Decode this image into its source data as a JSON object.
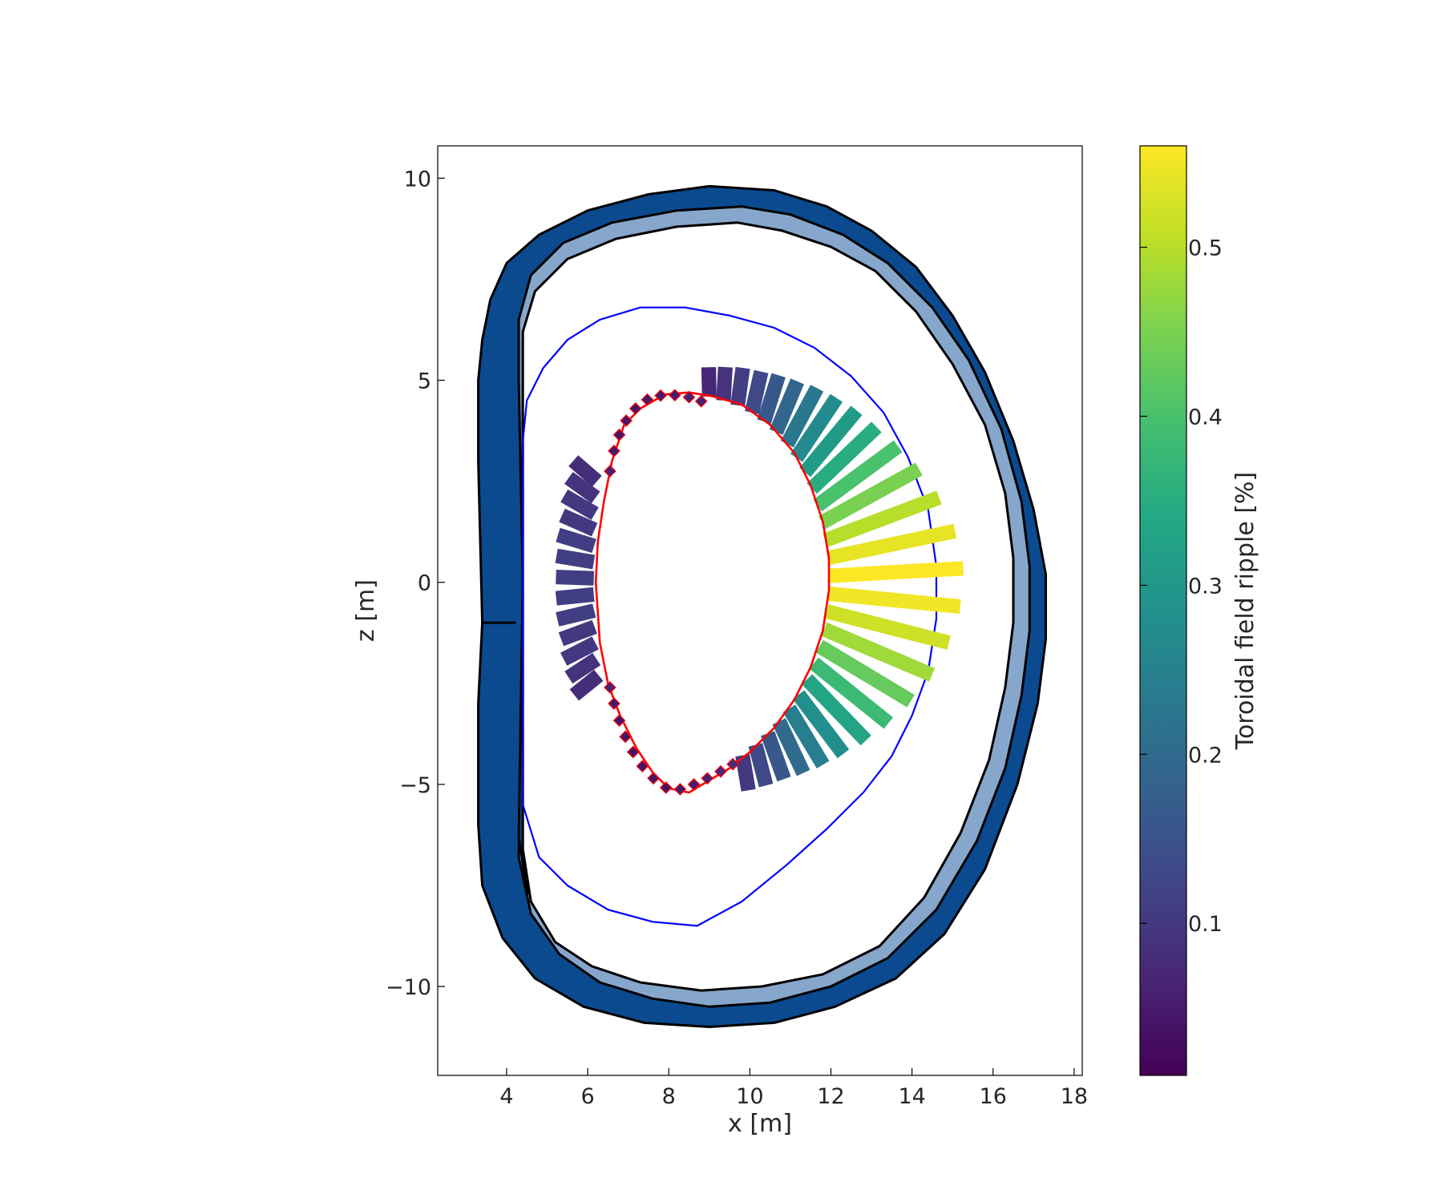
{
  "chart_data": {
    "type": "scatter",
    "xlabel": "x [m]",
    "ylabel": "z [m]",
    "xlim": [
      2.3,
      18.2
    ],
    "ylim": [
      -12.2,
      10.8
    ],
    "xticks": [
      4,
      6,
      8,
      10,
      12,
      14,
      16,
      18
    ],
    "yticks": [
      -10,
      -5,
      0,
      5,
      10
    ],
    "xtick_labels": [
      "4",
      "6",
      "8",
      "10",
      "12",
      "14",
      "16",
      "18"
    ],
    "ytick_labels": [
      "−10",
      "−5",
      "0",
      "5",
      "10"
    ],
    "grid": false,
    "colorbar": {
      "label": "Toroidal field ripple [%]",
      "range": [
        0.01,
        0.56
      ],
      "ticks": [
        0.1,
        0.2,
        0.3,
        0.4,
        0.5
      ],
      "tick_labels": [
        "0.1",
        "0.2",
        "0.3",
        "0.4",
        "0.5"
      ],
      "colormap": "viridis"
    },
    "colors": {
      "coil_dark": "#0b4a8f",
      "coil_light": "#86a6cb",
      "outline": "#000000",
      "boundary_line": "#0000ff",
      "plasma_line": "#ff0000"
    },
    "tf_coil": {
      "outer_casing": [
        [
          4.2,
          -1
        ],
        [
          3.4,
          -1
        ],
        [
          3.3,
          3
        ],
        [
          3.3,
          5
        ],
        [
          3.4,
          6
        ],
        [
          3.6,
          7
        ],
        [
          4.0,
          7.9
        ],
        [
          4.8,
          8.6
        ],
        [
          6.0,
          9.2
        ],
        [
          7.5,
          9.6
        ],
        [
          9.0,
          9.8
        ],
        [
          10.6,
          9.7
        ],
        [
          11.9,
          9.3
        ],
        [
          13.0,
          8.7
        ],
        [
          14.1,
          7.8
        ],
        [
          15.0,
          6.6
        ],
        [
          15.8,
          5.2
        ],
        [
          16.5,
          3.5
        ],
        [
          17.0,
          1.8
        ],
        [
          17.3,
          0.2
        ],
        [
          17.3,
          -1.4
        ],
        [
          17.1,
          -3.0
        ],
        [
          16.6,
          -5.0
        ],
        [
          15.8,
          -7.1
        ],
        [
          14.8,
          -8.7
        ],
        [
          13.6,
          -9.8
        ],
        [
          12.1,
          -10.5
        ],
        [
          10.6,
          -10.9
        ],
        [
          9.0,
          -11.0
        ],
        [
          7.4,
          -10.9
        ],
        [
          5.9,
          -10.5
        ],
        [
          4.7,
          -9.8
        ],
        [
          3.9,
          -8.8
        ],
        [
          3.4,
          -7.5
        ],
        [
          3.3,
          -6.0
        ],
        [
          3.3,
          -3.0
        ],
        [
          3.4,
          -1.0
        ],
        [
          4.2,
          -1
        ]
      ],
      "casing_inner": [
        [
          4.4,
          0
        ],
        [
          4.3,
          -6.8
        ],
        [
          4.6,
          -8.2
        ],
        [
          5.3,
          -9.2
        ],
        [
          6.3,
          -9.9
        ],
        [
          7.6,
          -10.3
        ],
        [
          9.0,
          -10.5
        ],
        [
          10.5,
          -10.4
        ],
        [
          12.0,
          -10.0
        ],
        [
          13.4,
          -9.3
        ],
        [
          14.6,
          -8.1
        ],
        [
          15.6,
          -6.4
        ],
        [
          16.3,
          -4.6
        ],
        [
          16.7,
          -2.8
        ],
        [
          16.9,
          -1.2
        ],
        [
          16.9,
          0.4
        ],
        [
          16.7,
          2.0
        ],
        [
          16.2,
          3.8
        ],
        [
          15.4,
          5.5
        ],
        [
          14.5,
          6.8
        ],
        [
          13.4,
          7.9
        ],
        [
          12.3,
          8.6
        ],
        [
          11.0,
          9.1
        ],
        [
          9.8,
          9.3
        ],
        [
          8.2,
          9.2
        ],
        [
          6.6,
          8.9
        ],
        [
          5.4,
          8.4
        ],
        [
          4.6,
          7.6
        ],
        [
          4.3,
          6.5
        ],
        [
          4.3,
          5.0
        ],
        [
          4.4,
          0
        ]
      ],
      "winding_inner": [
        [
          4.4,
          0
        ],
        [
          4.3,
          -6.3
        ],
        [
          4.5,
          -7.6
        ],
        [
          5.1,
          -8.6
        ],
        [
          6.0,
          -9.2
        ],
        [
          7.2,
          -9.6
        ],
        [
          8.7,
          -9.8
        ],
        [
          10.2,
          -9.7
        ],
        [
          11.7,
          -9.4
        ],
        [
          13.0,
          -8.7
        ],
        [
          14.1,
          -7.6
        ],
        [
          15.0,
          -6.0
        ],
        [
          15.7,
          -4.2
        ],
        [
          16.1,
          -2.4
        ],
        [
          16.3,
          -0.8
        ],
        [
          16.3,
          0.8
        ],
        [
          16.1,
          2.3
        ],
        [
          15.6,
          4.0
        ],
        [
          14.9,
          5.4
        ],
        [
          14.0,
          6.6
        ],
        [
          13.0,
          7.5
        ],
        [
          11.9,
          8.1
        ],
        [
          10.7,
          8.5
        ],
        [
          9.6,
          8.6
        ],
        [
          8.2,
          8.5
        ],
        [
          6.8,
          8.2
        ],
        [
          5.6,
          7.7
        ],
        [
          4.8,
          7.0
        ],
        [
          4.4,
          6.0
        ],
        [
          4.4,
          0
        ]
      ],
      "inner_edge": [
        [
          4.4,
          0
        ],
        [
          4.4,
          -6.6
        ],
        [
          4.6,
          -7.9
        ],
        [
          5.2,
          -8.9
        ],
        [
          6.1,
          -9.5
        ],
        [
          7.3,
          -9.9
        ],
        [
          8.8,
          -10.1
        ],
        [
          10.3,
          -10.0
        ],
        [
          11.8,
          -9.7
        ],
        [
          13.2,
          -9.0
        ],
        [
          14.3,
          -7.8
        ],
        [
          15.2,
          -6.2
        ],
        [
          15.9,
          -4.4
        ],
        [
          16.3,
          -2.6
        ],
        [
          16.5,
          -1.0
        ],
        [
          16.5,
          0.6
        ],
        [
          16.3,
          2.2
        ],
        [
          15.8,
          3.9
        ],
        [
          15.0,
          5.4
        ],
        [
          14.1,
          6.7
        ],
        [
          13.1,
          7.7
        ],
        [
          12.0,
          8.3
        ],
        [
          10.8,
          8.7
        ],
        [
          9.7,
          8.9
        ],
        [
          8.2,
          8.8
        ],
        [
          6.7,
          8.5
        ],
        [
          5.5,
          8.0
        ],
        [
          4.7,
          7.2
        ],
        [
          4.4,
          6.2
        ],
        [
          4.4,
          0
        ]
      ]
    },
    "boundary": [
      [
        4.4,
        -5.5
      ],
      [
        4.4,
        3.5
      ],
      [
        4.5,
        4.5
      ],
      [
        4.9,
        5.3
      ],
      [
        5.5,
        6.0
      ],
      [
        6.3,
        6.5
      ],
      [
        7.3,
        6.8
      ],
      [
        8.4,
        6.8
      ],
      [
        9.5,
        6.6
      ],
      [
        10.6,
        6.3
      ],
      [
        11.6,
        5.8
      ],
      [
        12.5,
        5.1
      ],
      [
        13.3,
        4.2
      ],
      [
        13.9,
        3.1
      ],
      [
        14.4,
        1.8
      ],
      [
        14.6,
        0.4
      ],
      [
        14.6,
        -0.9
      ],
      [
        14.4,
        -2.2
      ],
      [
        14.0,
        -3.3
      ],
      [
        13.5,
        -4.3
      ],
      [
        12.8,
        -5.2
      ],
      [
        11.9,
        -6.1
      ],
      [
        10.9,
        -7.0
      ],
      [
        9.8,
        -7.9
      ],
      [
        8.7,
        -8.5
      ],
      [
        7.6,
        -8.4
      ],
      [
        6.5,
        -8.1
      ],
      [
        5.5,
        -7.5
      ],
      [
        4.8,
        -6.8
      ],
      [
        4.4,
        -5.5
      ]
    ],
    "plasma": [
      [
        6.2,
        0
      ],
      [
        6.3,
        -1.5
      ],
      [
        6.5,
        -2.5
      ],
      [
        6.8,
        -3.3
      ],
      [
        7.2,
        -4.1
      ],
      [
        7.6,
        -4.7
      ],
      [
        8.0,
        -5.1
      ],
      [
        8.5,
        -5.2
      ],
      [
        9.0,
        -4.9
      ],
      [
        9.5,
        -4.6
      ],
      [
        10.0,
        -4.2
      ],
      [
        10.6,
        -3.6
      ],
      [
        11.1,
        -2.9
      ],
      [
        11.5,
        -2.1
      ],
      [
        11.8,
        -1.2
      ],
      [
        11.95,
        -0.2
      ],
      [
        11.95,
        0.6
      ],
      [
        11.8,
        1.5
      ],
      [
        11.5,
        2.4
      ],
      [
        11.1,
        3.2
      ],
      [
        10.5,
        3.9
      ],
      [
        9.8,
        4.4
      ],
      [
        9.1,
        4.6
      ],
      [
        8.5,
        4.7
      ],
      [
        7.9,
        4.65
      ],
      [
        7.3,
        4.3
      ],
      [
        6.9,
        3.9
      ],
      [
        6.6,
        3.0
      ],
      [
        6.4,
        2.0
      ],
      [
        6.25,
        1.0
      ],
      [
        6.2,
        0
      ]
    ],
    "ripple_bars": [
      {
        "x": 6.23,
        "z": 2.5,
        "ripple": 0.08
      },
      {
        "x": 6.2,
        "z": 2.1,
        "ripple": 0.09
      },
      {
        "x": 6.18,
        "z": 1.7,
        "ripple": 0.1
      },
      {
        "x": 6.17,
        "z": 1.3,
        "ripple": 0.1
      },
      {
        "x": 6.16,
        "z": 0.9,
        "ripple": 0.11
      },
      {
        "x": 6.15,
        "z": 0.5,
        "ripple": 0.11
      },
      {
        "x": 6.15,
        "z": 0.1,
        "ripple": 0.11
      },
      {
        "x": 6.15,
        "z": -0.3,
        "ripple": 0.11
      },
      {
        "x": 6.16,
        "z": -0.7,
        "ripple": 0.11
      },
      {
        "x": 6.17,
        "z": -1.1,
        "ripple": 0.1
      },
      {
        "x": 6.19,
        "z": -1.5,
        "ripple": 0.1
      },
      {
        "x": 6.22,
        "z": -1.9,
        "ripple": 0.09
      },
      {
        "x": 6.27,
        "z": -2.3,
        "ripple": 0.08
      },
      {
        "x": 9.0,
        "z": 4.6,
        "ripple": 0.07
      },
      {
        "x": 9.35,
        "z": 4.5,
        "ripple": 0.09
      },
      {
        "x": 9.7,
        "z": 4.38,
        "ripple": 0.11
      },
      {
        "x": 10.05,
        "z": 4.2,
        "ripple": 0.13
      },
      {
        "x": 10.35,
        "z": 3.98,
        "ripple": 0.16
      },
      {
        "x": 10.65,
        "z": 3.72,
        "ripple": 0.19
      },
      {
        "x": 10.92,
        "z": 3.42,
        "ripple": 0.23
      },
      {
        "x": 11.15,
        "z": 3.08,
        "ripple": 0.27
      },
      {
        "x": 11.36,
        "z": 2.72,
        "ripple": 0.31
      },
      {
        "x": 11.53,
        "z": 2.32,
        "ripple": 0.35
      },
      {
        "x": 11.67,
        "z": 1.9,
        "ripple": 0.4
      },
      {
        "x": 11.78,
        "z": 1.48,
        "ripple": 0.45
      },
      {
        "x": 11.86,
        "z": 1.04,
        "ripple": 0.5
      },
      {
        "x": 11.92,
        "z": 0.6,
        "ripple": 0.54
      },
      {
        "x": 11.95,
        "z": 0.16,
        "ripple": 0.56
      },
      {
        "x": 11.94,
        "z": -0.28,
        "ripple": 0.55
      },
      {
        "x": 11.9,
        "z": -0.72,
        "ripple": 0.52
      },
      {
        "x": 11.83,
        "z": -1.16,
        "ripple": 0.48
      },
      {
        "x": 11.72,
        "z": -1.58,
        "ripple": 0.43
      },
      {
        "x": 11.58,
        "z": -2.0,
        "ripple": 0.38
      },
      {
        "x": 11.41,
        "z": -2.4,
        "ripple": 0.33
      },
      {
        "x": 11.2,
        "z": -2.78,
        "ripple": 0.28
      },
      {
        "x": 10.97,
        "z": -3.12,
        "ripple": 0.24
      },
      {
        "x": 10.72,
        "z": -3.44,
        "ripple": 0.2
      },
      {
        "x": 10.44,
        "z": -3.74,
        "ripple": 0.16
      },
      {
        "x": 10.14,
        "z": -4.02,
        "ripple": 0.13
      },
      {
        "x": 9.82,
        "z": -4.28,
        "ripple": 0.1
      }
    ],
    "plasma_markers": [
      {
        "x": 6.55,
        "z": 2.75,
        "ripple": 0.06
      },
      {
        "x": 6.65,
        "z": 3.25,
        "ripple": 0.05
      },
      {
        "x": 6.78,
        "z": 3.65,
        "ripple": 0.04
      },
      {
        "x": 6.95,
        "z": 4.0,
        "ripple": 0.04
      },
      {
        "x": 7.18,
        "z": 4.3,
        "ripple": 0.04
      },
      {
        "x": 7.47,
        "z": 4.52,
        "ripple": 0.05
      },
      {
        "x": 7.8,
        "z": 4.62,
        "ripple": 0.05
      },
      {
        "x": 8.15,
        "z": 4.63,
        "ripple": 0.05
      },
      {
        "x": 8.5,
        "z": 4.58,
        "ripple": 0.06
      },
      {
        "x": 8.8,
        "z": 4.48,
        "ripple": 0.06
      },
      {
        "x": 6.55,
        "z": -2.6,
        "ripple": 0.06
      },
      {
        "x": 6.65,
        "z": -3.0,
        "ripple": 0.05
      },
      {
        "x": 6.78,
        "z": -3.42,
        "ripple": 0.04
      },
      {
        "x": 6.93,
        "z": -3.82,
        "ripple": 0.04
      },
      {
        "x": 7.12,
        "z": -4.2,
        "ripple": 0.04
      },
      {
        "x": 7.35,
        "z": -4.55,
        "ripple": 0.04
      },
      {
        "x": 7.62,
        "z": -4.85,
        "ripple": 0.04
      },
      {
        "x": 7.93,
        "z": -5.08,
        "ripple": 0.04
      },
      {
        "x": 8.28,
        "z": -5.12,
        "ripple": 0.05
      },
      {
        "x": 8.62,
        "z": -5.0,
        "ripple": 0.05
      },
      {
        "x": 8.95,
        "z": -4.85,
        "ripple": 0.06
      },
      {
        "x": 9.28,
        "z": -4.68,
        "ripple": 0.07
      },
      {
        "x": 9.58,
        "z": -4.5,
        "ripple": 0.08
      }
    ]
  }
}
